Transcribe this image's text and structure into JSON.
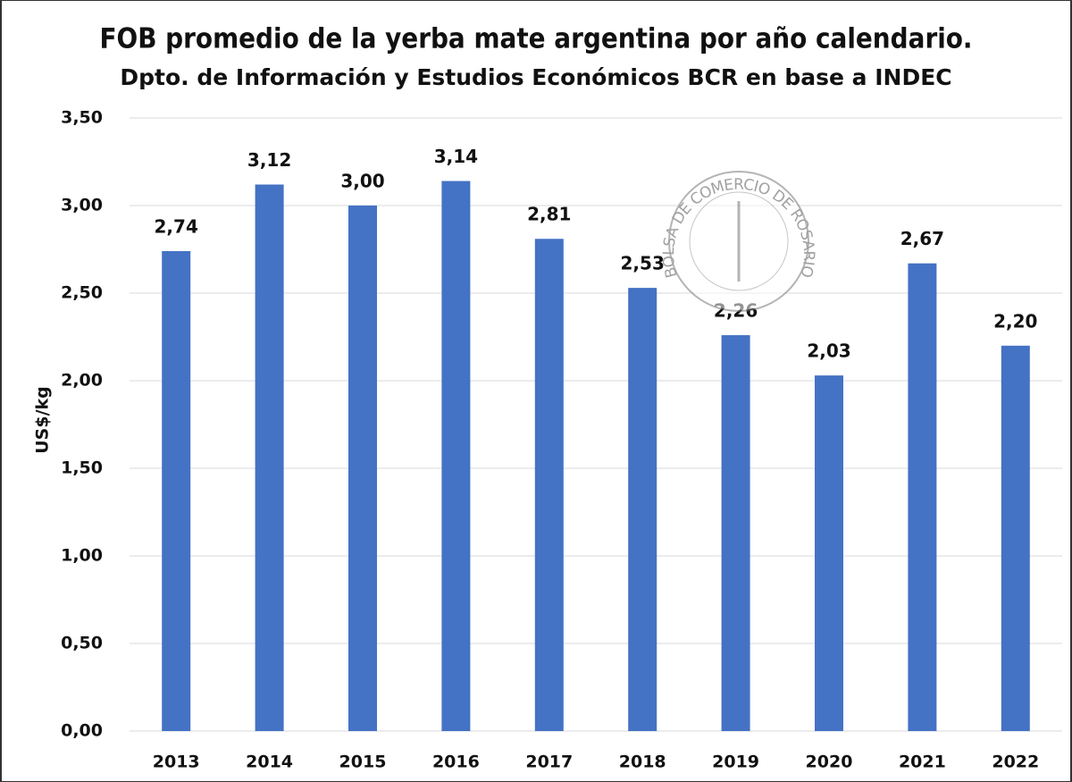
{
  "chart_data": {
    "type": "bar",
    "title": "FOB promedio de la yerba mate argentina por año calendario.",
    "subtitle": "Dpto. de Información y Estudios Económicos BCR en base a INDEC",
    "y_label": "US$/kg",
    "watermark": "BOLSA DE COMERCIO DE ROSARIO",
    "categories": [
      "2013",
      "2014",
      "2015",
      "2016",
      "2017",
      "2018",
      "2019",
      "2020",
      "2021",
      "2022"
    ],
    "values": [
      2.74,
      3.12,
      3.0,
      3.14,
      2.81,
      2.53,
      2.26,
      2.03,
      2.67,
      2.2
    ],
    "value_labels": [
      "2,74",
      "3,12",
      "3,00",
      "3,14",
      "2,81",
      "2,53",
      "2,26",
      "2,03",
      "2,67",
      "2,20"
    ],
    "color": "#4472c4",
    "ylim": [
      0,
      3.5
    ],
    "yticks": [
      {
        "value": 0,
        "label": "0,00"
      },
      {
        "value": 0.5,
        "label": "0,50"
      },
      {
        "value": 1,
        "label": "1,00"
      },
      {
        "value": 1.5,
        "label": "1,50"
      },
      {
        "value": 2,
        "label": "2,00"
      },
      {
        "value": 2.5,
        "label": "2,50"
      },
      {
        "value": 3,
        "label": "3,00"
      },
      {
        "value": 3.5,
        "label": "3,50"
      }
    ],
    "grid": true
  }
}
